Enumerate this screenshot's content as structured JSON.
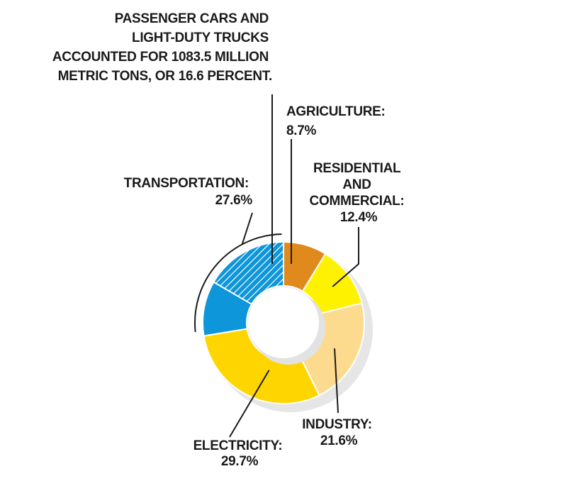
{
  "chart_data": {
    "type": "pie",
    "variant": "donut",
    "title": "",
    "segments": [
      {
        "name": "AGRICULTURE",
        "label_line1": "AGRICULTURE:",
        "value_text": "8.7%",
        "value": 8.7,
        "color": "#e08a1e"
      },
      {
        "name": "RESIDENTIAL AND COMMERCIAL",
        "label_lines": [
          "RESIDENTIAL",
          "AND",
          "COMMERCIAL:"
        ],
        "value_text": "12.4%",
        "value": 12.4,
        "color": "#fff200"
      },
      {
        "name": "INDUSTRY",
        "label_line1": "INDUSTRY:",
        "value_text": "21.6%",
        "value": 21.6,
        "color": "#fcdb8f"
      },
      {
        "name": "ELECTRICITY",
        "label_line1": "ELECTRICITY:",
        "value_text": "29.7%",
        "value": 29.7,
        "color": "#ffd500"
      },
      {
        "name": "TRANSPORTATION",
        "label_line1": "TRANSPORTATION:",
        "value_text": "27.6%",
        "value": 27.6,
        "color": "#0d96d9"
      }
    ],
    "sub_segment": {
      "parent": "TRANSPORTATION",
      "value": 16.6,
      "hatched": true,
      "annotation_lines": [
        "PASSENGER CARS AND",
        "LIGHT-DUTY TRUCKS",
        "ACCOUNTED FOR 1083.5 MILLION",
        "METRIC TONS, OR 16.6 PERCENT."
      ]
    }
  }
}
